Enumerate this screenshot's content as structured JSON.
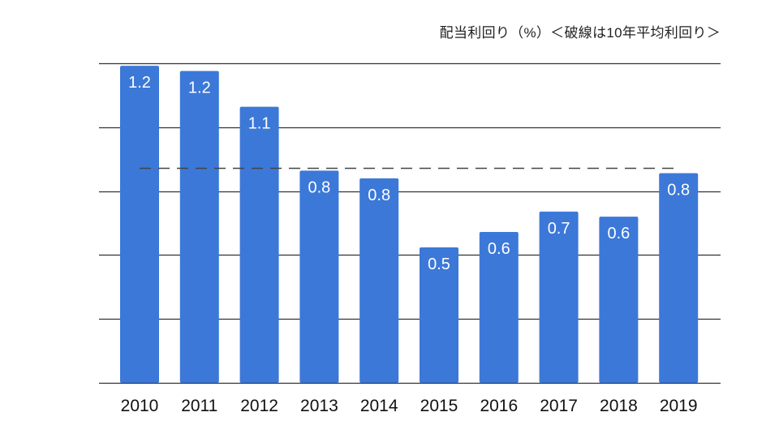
{
  "chart_data": {
    "type": "bar",
    "title": "配当利回り（%）＜破線は10年平均利回り＞",
    "categories": [
      "2010",
      "2011",
      "2012",
      "2013",
      "2014",
      "2015",
      "2016",
      "2017",
      "2018",
      "2019"
    ],
    "values": [
      1.24,
      1.22,
      1.08,
      0.83,
      0.8,
      0.53,
      0.59,
      0.67,
      0.65,
      0.82
    ],
    "data_labels": [
      "1.2",
      "1.2",
      "1.1",
      "0.8",
      "0.8",
      "0.5",
      "0.6",
      "0.7",
      "0.6",
      "0.8"
    ],
    "average": {
      "value": 0.84,
      "style": "dashed"
    },
    "ylim": [
      0,
      1.25
    ],
    "gridline_step": 0.25,
    "grid": true,
    "xlabel": "",
    "ylabel": "",
    "colors": {
      "bar": "#3c78d8",
      "grid": "#333333",
      "average_line": "#444444",
      "label": "#ffffff"
    }
  }
}
